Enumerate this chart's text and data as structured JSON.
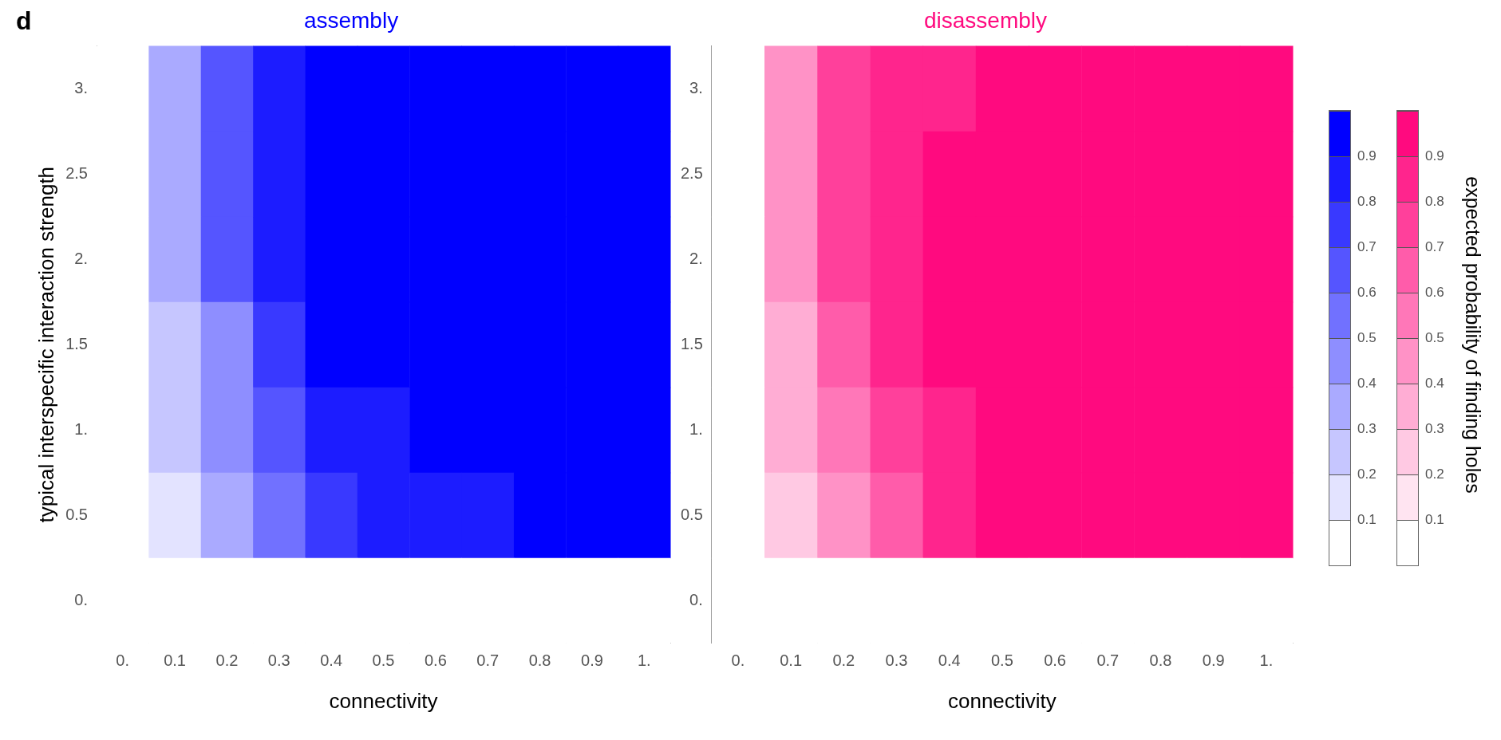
{
  "chart_data": [
    {
      "type": "heatmap",
      "title": "assembly",
      "color": "#0000ff",
      "xlabel": "connectivity",
      "ylabel": "typical interspecific interaction strength",
      "annotations": [
        "d"
      ],
      "categories": [
        "0.",
        "0.1",
        "0.2",
        "0.3",
        "0.4",
        "0.5",
        "0.6",
        "0.7",
        "0.8",
        "0.9",
        "1."
      ],
      "y_categories": [
        "3.",
        "2.5",
        "2.",
        "1.5",
        "1.",
        "0.5",
        "0."
      ],
      "cells": [
        [
          0.05,
          0.35,
          0.65,
          0.85,
          0.95,
          0.95,
          0.95,
          0.95,
          0.95,
          0.95,
          0.95
        ],
        [
          0.05,
          0.35,
          0.65,
          0.85,
          0.95,
          0.95,
          0.95,
          0.95,
          0.95,
          0.95,
          0.95
        ],
        [
          0.05,
          0.35,
          0.6,
          0.85,
          0.95,
          0.95,
          0.95,
          0.95,
          0.95,
          0.95,
          0.95
        ],
        [
          0.05,
          0.25,
          0.45,
          0.75,
          0.9,
          0.95,
          0.95,
          0.95,
          0.95,
          0.95,
          0.95
        ],
        [
          0.05,
          0.25,
          0.45,
          0.65,
          0.85,
          0.85,
          0.95,
          0.95,
          0.95,
          0.95,
          0.95
        ],
        [
          0.05,
          0.15,
          0.35,
          0.55,
          0.7,
          0.8,
          0.85,
          0.85,
          0.9,
          0.95,
          0.95
        ],
        [
          0.05,
          0.05,
          0.05,
          0.05,
          0.05,
          0.05,
          0.05,
          0.05,
          0.05,
          0.05,
          0.05
        ]
      ],
      "clim": [
        0,
        1
      ],
      "cticks": [
        0.1,
        0.2,
        0.3,
        0.4,
        0.5,
        0.6,
        0.7,
        0.8,
        0.9
      ]
    },
    {
      "type": "heatmap",
      "title": "disassembly",
      "color": "#ff0a7f",
      "xlabel": "connectivity",
      "clabel": "expected probability of finding  holes",
      "categories": [
        "0.",
        "0.1",
        "0.2",
        "0.3",
        "0.4",
        "0.5",
        "0.6",
        "0.7",
        "0.8",
        "0.9",
        "1."
      ],
      "y_categories": [
        "3.",
        "2.5",
        "2.",
        "1.5",
        "1.",
        "0.5",
        "0."
      ],
      "cells": [
        [
          0.05,
          0.45,
          0.75,
          0.85,
          0.85,
          0.9,
          0.95,
          0.95,
          0.95,
          0.95,
          0.95
        ],
        [
          0.05,
          0.45,
          0.75,
          0.85,
          0.9,
          0.95,
          0.95,
          0.95,
          0.95,
          0.95,
          0.95
        ],
        [
          0.05,
          0.4,
          0.7,
          0.85,
          0.9,
          0.95,
          0.95,
          0.95,
          0.95,
          0.95,
          0.95
        ],
        [
          0.05,
          0.35,
          0.6,
          0.8,
          0.9,
          0.95,
          0.95,
          0.95,
          0.95,
          0.95,
          0.95
        ],
        [
          0.05,
          0.3,
          0.55,
          0.7,
          0.85,
          0.95,
          0.95,
          0.95,
          0.95,
          0.95,
          0.95
        ],
        [
          0.05,
          0.25,
          0.45,
          0.65,
          0.8,
          0.9,
          0.95,
          0.95,
          0.95,
          0.95,
          0.95
        ],
        [
          0.05,
          0.05,
          0.05,
          0.05,
          0.05,
          0.05,
          0.05,
          0.05,
          0.05,
          0.05,
          0.05
        ]
      ],
      "clim": [
        0,
        1
      ],
      "cticks": [
        0.1,
        0.2,
        0.3,
        0.4,
        0.5,
        0.6,
        0.7,
        0.8,
        0.9
      ]
    }
  ]
}
